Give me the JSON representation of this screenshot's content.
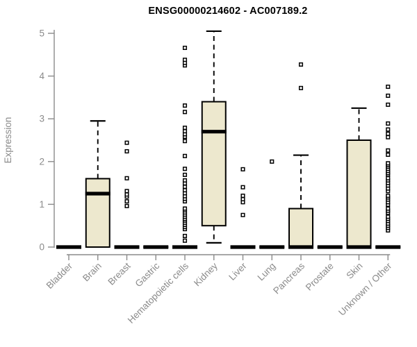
{
  "chart_data": {
    "type": "boxplot",
    "title": "ENSG00000214602 - AC007189.2",
    "ylabel": "Expression",
    "xlabel": "",
    "ylim": [
      0,
      5
    ],
    "yticks": [
      0,
      1,
      2,
      3,
      4,
      5
    ],
    "grid": false,
    "legend": "none",
    "categories": [
      "Bladder",
      "Brain",
      "Breast",
      "Gastric",
      "Hematopoietic cells",
      "Kidney",
      "Liver",
      "Lung",
      "Pancreas",
      "Prostate",
      "Skin",
      "Unknown / Other"
    ],
    "series": [
      {
        "label": "Bladder",
        "q1": 0,
        "median": 0,
        "q3": 0,
        "whisker_low": 0,
        "whisker_high": 0,
        "outliers": []
      },
      {
        "label": "Brain",
        "q1": 0,
        "median": 1.25,
        "q3": 1.6,
        "whisker_low": 0,
        "whisker_high": 2.95,
        "outliers": []
      },
      {
        "label": "Breast",
        "q1": 0,
        "median": 0,
        "q3": 0,
        "whisker_low": 0,
        "whisker_high": 0,
        "outliers": [
          0.96,
          1.07,
          1.18,
          1.23,
          1.31,
          1.61,
          2.24,
          2.44
        ]
      },
      {
        "label": "Gastric",
        "q1": 0,
        "median": 0,
        "q3": 0,
        "whisker_low": 0,
        "whisker_high": 0,
        "outliers": []
      },
      {
        "label": "Hematopoietic cells",
        "q1": 0,
        "median": 0,
        "q3": 0,
        "whisker_low": 0,
        "whisker_high": 0,
        "outliers": [
          0.15,
          0.26,
          0.42,
          0.47,
          0.52,
          0.57,
          0.62,
          0.66,
          0.71,
          0.76,
          0.81,
          0.86,
          0.9,
          1.07,
          1.13,
          1.19,
          1.26,
          1.33,
          1.41,
          1.49,
          1.56,
          1.69,
          1.83,
          2.13,
          2.48,
          2.58,
          2.64,
          2.71,
          2.79,
          3.16,
          3.31,
          4.25,
          4.31,
          4.38,
          4.66
        ]
      },
      {
        "label": "Kidney",
        "q1": 0.5,
        "median": 2.7,
        "q3": 3.4,
        "whisker_low": 0.1,
        "whisker_high": 5.05,
        "outliers": []
      },
      {
        "label": "Liver",
        "q1": 0,
        "median": 0,
        "q3": 0,
        "whisker_low": 0,
        "whisker_high": 0,
        "outliers": [
          0.75,
          1.05,
          1.12,
          1.2,
          1.4,
          1.82
        ]
      },
      {
        "label": "Lung",
        "q1": 0,
        "median": 0,
        "q3": 0,
        "whisker_low": 0,
        "whisker_high": 0,
        "outliers": [
          2.0
        ]
      },
      {
        "label": "Pancreas",
        "q1": 0,
        "median": 0,
        "q3": 0.9,
        "whisker_low": 0,
        "whisker_high": 2.15,
        "outliers": [
          3.72,
          4.27
        ]
      },
      {
        "label": "Prostate",
        "q1": 0,
        "median": 0,
        "q3": 0,
        "whisker_low": 0,
        "whisker_high": 0,
        "outliers": []
      },
      {
        "label": "Skin",
        "q1": 0,
        "median": 0,
        "q3": 2.5,
        "whisker_low": 0,
        "whisker_high": 3.25,
        "outliers": []
      },
      {
        "label": "Unknown / Other",
        "q1": 0,
        "median": 0,
        "q3": 0,
        "whisker_low": 0,
        "whisker_high": 0,
        "outliers": [
          0.39,
          0.45,
          0.5,
          0.55,
          0.61,
          0.66,
          0.71,
          0.8,
          0.85,
          0.9,
          0.99,
          1.05,
          1.11,
          1.16,
          1.2,
          1.31,
          1.37,
          1.44,
          1.5,
          1.56,
          1.61,
          1.69,
          1.73,
          1.78,
          1.83,
          1.88,
          1.92,
          1.96,
          2.16,
          2.26,
          2.57,
          2.65,
          2.75,
          2.89,
          3.33,
          3.54,
          3.75
        ]
      }
    ],
    "colors": {
      "box_fill": "#EDE8CE",
      "box_stroke": "#000000",
      "median": "#000000",
      "axis": "#8A8A8A",
      "tick_label": "#8A8A8A",
      "title": "#000000",
      "background": "#FFFFFF"
    }
  }
}
